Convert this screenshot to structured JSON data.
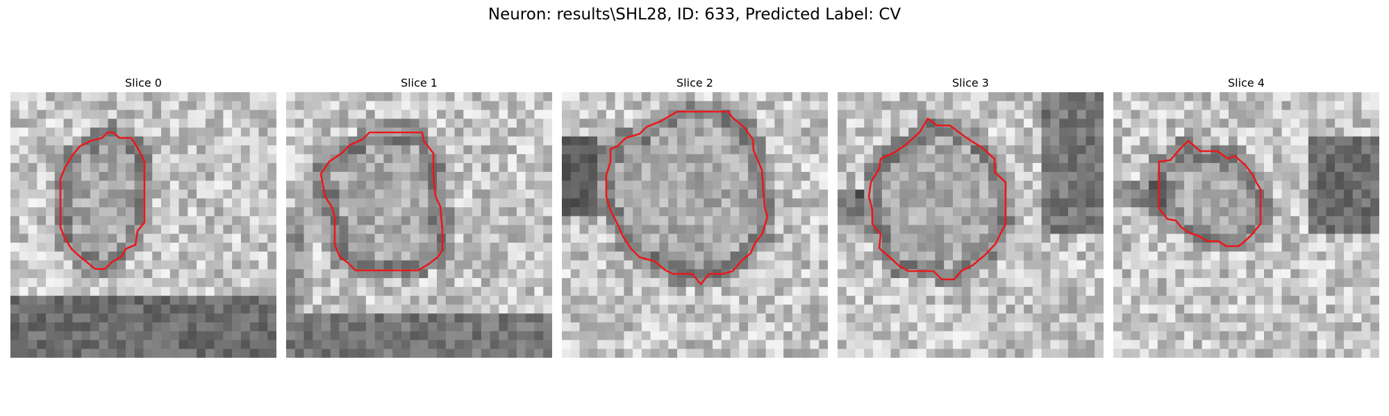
{
  "figure": {
    "title": "Neuron: results\\SHL28, ID: 633, Predicted Label: CV"
  },
  "panels": [
    {
      "title": "Slice 0",
      "contour_color": "#e8191c"
    },
    {
      "title": "Slice 1",
      "contour_color": "#e8191c"
    },
    {
      "title": "Slice 2",
      "contour_color": "#e8191c"
    },
    {
      "title": "Slice 3",
      "contour_color": "#e8191c"
    },
    {
      "title": "Slice 4",
      "contour_color": "#e8191c"
    }
  ],
  "style": {
    "colormap": "grayscale",
    "cells_per_side": 30
  }
}
